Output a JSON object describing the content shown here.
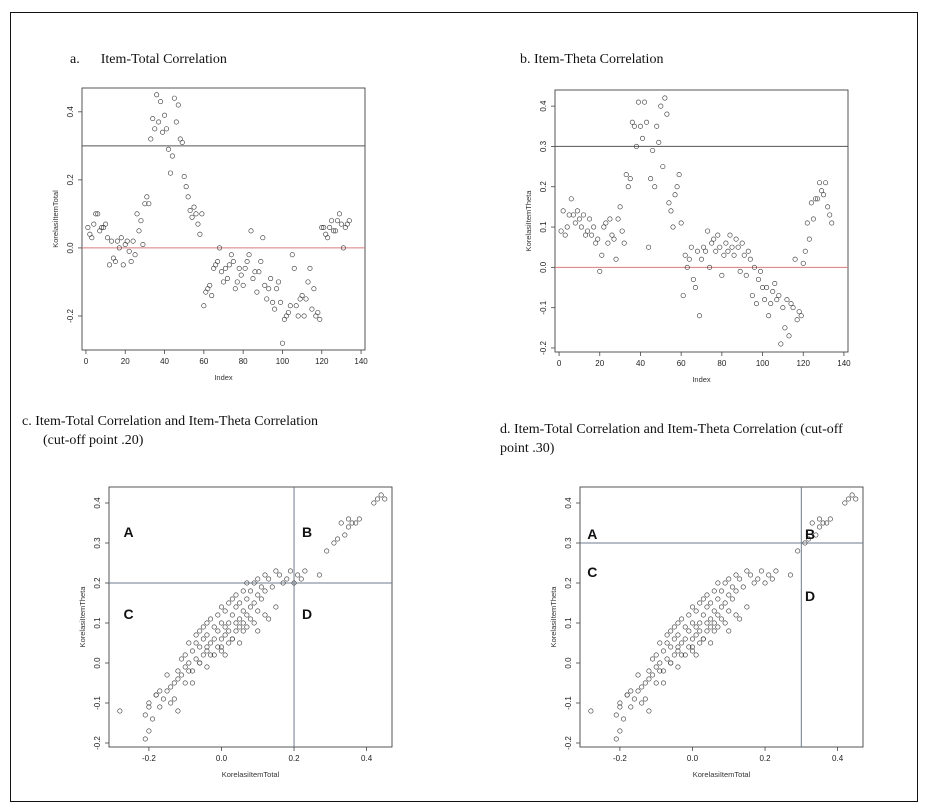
{
  "figure": {
    "captions": {
      "a": "a.      Item-Total Correlation",
      "b": "b. Item-Theta Correlation",
      "c": "c. Item-Total Correlation and Item-Theta Correlation\n      (cut-off point .20)",
      "d": "d. Item-Total Correlation and Item-Theta Correlation (cut-off\npoint .30)"
    }
  },
  "chart_data": [
    {
      "id": "a",
      "type": "scatter",
      "title": "a.      Item-Total Correlation",
      "xlabel": "Index",
      "ylabel": "KorelasiItemTotal",
      "xlim": [
        -2,
        142
      ],
      "ylim": [
        -0.3,
        0.47
      ],
      "xticks": [
        0,
        20,
        40,
        60,
        80,
        100,
        120,
        140
      ],
      "yticks": [
        -0.2,
        0.0,
        0.2,
        0.4
      ],
      "hlines": [
        {
          "y": 0.3,
          "color": "#555555"
        },
        {
          "y": 0.0,
          "color": "#d97b7b"
        }
      ],
      "x": [
        1,
        2,
        3,
        4,
        5,
        6,
        7,
        8,
        9,
        10,
        11,
        12,
        13,
        14,
        15,
        16,
        17,
        18,
        19,
        20,
        21,
        22,
        23,
        24,
        25,
        26,
        27,
        28,
        29,
        30,
        31,
        32,
        33,
        34,
        35,
        36,
        37,
        38,
        39,
        40,
        41,
        42,
        43,
        44,
        45,
        46,
        47,
        48,
        49,
        50,
        51,
        52,
        53,
        54,
        55,
        56,
        57,
        58,
        59,
        60,
        61,
        62,
        63,
        64,
        65,
        66,
        67,
        68,
        69,
        70,
        71,
        72,
        73,
        74,
        75,
        76,
        77,
        78,
        79,
        80,
        81,
        82,
        83,
        84,
        85,
        86,
        87,
        88,
        89,
        90,
        91,
        92,
        93,
        94,
        95,
        96,
        97,
        98,
        99,
        100,
        101,
        102,
        103,
        104,
        105,
        106,
        107,
        108,
        109,
        110,
        111,
        112,
        113,
        114,
        115,
        116,
        117,
        118,
        119,
        120,
        121,
        122,
        123,
        124,
        125,
        126,
        127,
        128,
        129,
        130,
        131,
        132,
        133,
        134
      ],
      "y": [
        0.06,
        0.04,
        0.03,
        0.07,
        0.1,
        0.1,
        0.05,
        0.06,
        0.06,
        0.07,
        0.03,
        -0.05,
        0.02,
        -0.03,
        -0.04,
        0.02,
        0.0,
        0.03,
        -0.05,
        0.01,
        0.02,
        -0.01,
        -0.04,
        0.02,
        -0.02,
        0.1,
        0.05,
        0.08,
        0.01,
        0.13,
        0.15,
        0.13,
        0.32,
        0.38,
        0.35,
        0.45,
        0.37,
        0.43,
        0.34,
        0.39,
        0.35,
        0.29,
        0.22,
        0.27,
        0.44,
        0.37,
        0.42,
        0.32,
        0.31,
        0.21,
        0.18,
        0.15,
        0.11,
        0.09,
        0.12,
        0.1,
        0.07,
        0.04,
        0.1,
        -0.17,
        -0.13,
        -0.12,
        -0.11,
        -0.14,
        -0.06,
        -0.05,
        -0.04,
        0.0,
        -0.07,
        -0.1,
        -0.06,
        -0.09,
        -0.05,
        -0.02,
        -0.04,
        -0.12,
        -0.1,
        -0.06,
        -0.08,
        -0.11,
        -0.06,
        -0.04,
        -0.02,
        0.05,
        -0.09,
        -0.07,
        -0.13,
        -0.07,
        -0.04,
        0.03,
        -0.11,
        -0.15,
        -0.12,
        -0.09,
        -0.16,
        -0.18,
        -0.12,
        -0.1,
        -0.16,
        -0.28,
        -0.21,
        -0.2,
        -0.19,
        -0.17,
        -0.02,
        -0.06,
        -0.17,
        -0.2,
        -0.15,
        -0.14,
        -0.2,
        -0.15,
        -0.1,
        -0.06,
        -0.18,
        -0.12,
        -0.2,
        -0.19,
        -0.21,
        0.06,
        0.06,
        0.04,
        0.03,
        0.06,
        0.08,
        0.05,
        0.05,
        0.08,
        0.1,
        0.07,
        0.0,
        0.06,
        0.07,
        0.08
      ]
    },
    {
      "id": "b",
      "type": "scatter",
      "title": "b. Item-Theta Correlation",
      "xlabel": "Index",
      "ylabel": "KorelasiItemTheta",
      "xlim": [
        -2,
        142
      ],
      "ylim": [
        -0.21,
        0.44
      ],
      "xticks": [
        0,
        20,
        40,
        60,
        80,
        100,
        120,
        140
      ],
      "yticks": [
        -0.2,
        -0.1,
        0.0,
        0.1,
        0.2,
        0.3,
        0.4
      ],
      "hlines": [
        {
          "y": 0.3,
          "color": "#555555"
        },
        {
          "y": 0.0,
          "color": "#d97b7b"
        }
      ],
      "x": [
        1,
        2,
        3,
        4,
        5,
        6,
        7,
        8,
        9,
        10,
        11,
        12,
        13,
        14,
        15,
        16,
        17,
        18,
        19,
        20,
        21,
        22,
        23,
        24,
        25,
        26,
        27,
        28,
        29,
        30,
        31,
        32,
        33,
        34,
        35,
        36,
        37,
        38,
        39,
        40,
        41,
        42,
        43,
        44,
        45,
        46,
        47,
        48,
        49,
        50,
        51,
        52,
        53,
        54,
        55,
        56,
        57,
        58,
        59,
        60,
        61,
        62,
        63,
        64,
        65,
        66,
        67,
        68,
        69,
        70,
        71,
        72,
        73,
        74,
        75,
        76,
        77,
        78,
        79,
        80,
        81,
        82,
        83,
        84,
        85,
        86,
        87,
        88,
        89,
        90,
        91,
        92,
        93,
        94,
        95,
        96,
        97,
        98,
        99,
        100,
        101,
        102,
        103,
        104,
        105,
        106,
        107,
        108,
        109,
        110,
        111,
        112,
        113,
        114,
        115,
        116,
        117,
        118,
        119,
        120,
        121,
        122,
        123,
        124,
        125,
        126,
        127,
        128,
        129,
        130,
        131,
        132,
        133,
        134
      ],
      "y": [
        0.09,
        0.14,
        0.08,
        0.1,
        0.13,
        0.17,
        0.13,
        0.11,
        0.14,
        0.12,
        0.1,
        0.13,
        0.08,
        0.09,
        0.12,
        0.08,
        0.1,
        0.06,
        0.07,
        -0.01,
        0.03,
        0.1,
        0.11,
        0.06,
        0.12,
        0.08,
        0.07,
        0.02,
        0.12,
        0.15,
        0.09,
        0.06,
        0.23,
        0.2,
        0.22,
        0.36,
        0.35,
        0.3,
        0.41,
        0.35,
        0.32,
        0.41,
        0.36,
        0.05,
        0.22,
        0.29,
        0.2,
        0.35,
        0.31,
        0.4,
        0.25,
        0.42,
        0.38,
        0.16,
        0.14,
        0.1,
        0.18,
        0.2,
        0.23,
        0.11,
        -0.07,
        0.03,
        0.0,
        0.02,
        0.05,
        -0.03,
        -0.05,
        0.04,
        -0.12,
        0.02,
        0.05,
        0.04,
        0.09,
        0.0,
        0.06,
        0.07,
        0.04,
        0.08,
        0.05,
        -0.02,
        0.03,
        0.06,
        0.04,
        0.08,
        0.05,
        0.03,
        0.07,
        0.05,
        -0.01,
        0.06,
        0.03,
        -0.02,
        0.04,
        0.02,
        -0.07,
        0.0,
        -0.09,
        -0.03,
        -0.01,
        -0.05,
        -0.08,
        -0.05,
        -0.12,
        -0.09,
        -0.06,
        -0.04,
        -0.08,
        -0.07,
        -0.19,
        -0.1,
        -0.15,
        -0.08,
        -0.17,
        -0.09,
        -0.1,
        0.02,
        -0.13,
        -0.11,
        -0.12,
        0.01,
        0.04,
        0.11,
        0.07,
        0.16,
        0.12,
        0.17,
        0.17,
        0.21,
        0.19,
        0.18,
        0.21,
        0.15,
        0.13,
        0.11
      ]
    },
    {
      "id": "c",
      "type": "scatter",
      "title": "c. Item-Total Correlation and Item-Theta Correlation\n      (cut-off point .20)",
      "xlabel": "KorelasiItemTotal",
      "ylabel": "KorelasiItemTheta",
      "xlim": [
        -0.31,
        0.47
      ],
      "ylim": [
        -0.21,
        0.44
      ],
      "xticks": [
        -0.2,
        0.0,
        0.2,
        0.4
      ],
      "yticks": [
        -0.2,
        -0.1,
        0.0,
        0.1,
        0.2,
        0.3,
        0.4
      ],
      "cutoff": 0.2,
      "quadrant_labels": [
        {
          "text": "A",
          "x": -0.27,
          "y": 0.315
        },
        {
          "text": "B",
          "x": 0.222,
          "y": 0.315
        },
        {
          "text": "C",
          "x": -0.27,
          "y": 0.11
        },
        {
          "text": "D",
          "x": 0.222,
          "y": 0.11
        }
      ],
      "x": [
        -0.28,
        -0.21,
        -0.2,
        -0.2,
        -0.19,
        -0.18,
        -0.17,
        -0.16,
        -0.15,
        -0.14,
        -0.14,
        -0.13,
        -0.12,
        -0.12,
        -0.11,
        -0.11,
        -0.1,
        -0.1,
        -0.1,
        -0.09,
        -0.09,
        -0.08,
        -0.08,
        -0.07,
        -0.07,
        -0.07,
        -0.06,
        -0.06,
        -0.06,
        -0.05,
        -0.05,
        -0.05,
        -0.04,
        -0.04,
        -0.04,
        -0.04,
        -0.03,
        -0.03,
        -0.02,
        -0.02,
        -0.02,
        -0.01,
        -0.01,
        -0.01,
        0.0,
        0.0,
        0.0,
        0.0,
        0.01,
        0.01,
        0.01,
        0.02,
        0.02,
        0.02,
        0.02,
        0.03,
        0.03,
        0.03,
        0.04,
        0.04,
        0.04,
        0.04,
        0.05,
        0.05,
        0.05,
        0.06,
        0.06,
        0.06,
        0.07,
        0.07,
        0.07,
        0.07,
        0.08,
        0.08,
        0.08,
        0.09,
        0.09,
        0.1,
        0.1,
        0.1,
        0.11,
        0.11,
        0.12,
        0.12,
        0.13,
        0.14,
        0.15,
        0.16,
        0.17,
        0.18,
        0.19,
        0.2,
        0.21,
        0.22,
        0.23,
        0.27,
        0.29,
        0.31,
        0.32,
        0.33,
        0.34,
        0.35,
        0.35,
        0.36,
        0.37,
        0.38,
        0.42,
        0.43,
        0.44,
        0.45,
        -0.21,
        -0.2,
        -0.18,
        -0.15,
        -0.12,
        -0.09,
        -0.06,
        -0.03,
        0.0,
        0.03,
        0.06,
        0.09,
        0.12,
        0.15,
        -0.17,
        -0.13,
        -0.08,
        -0.04,
        0.01,
        0.05,
        0.1,
        0.13
      ],
      "y": [
        -0.12,
        -0.19,
        -0.17,
        -0.1,
        -0.14,
        -0.08,
        -0.07,
        -0.09,
        -0.03,
        -0.06,
        -0.1,
        -0.05,
        -0.02,
        -0.12,
        -0.03,
        0.01,
        -0.05,
        0.02,
        -0.01,
        0.0,
        0.05,
        0.03,
        -0.02,
        0.05,
        0.01,
        0.07,
        0.0,
        0.04,
        0.08,
        0.02,
        0.06,
        0.09,
        0.04,
        0.07,
        0.1,
        0.03,
        0.05,
        0.11,
        0.06,
        0.09,
        0.02,
        0.08,
        0.12,
        0.04,
        0.06,
        0.1,
        0.14,
        0.03,
        0.09,
        0.07,
        0.13,
        0.05,
        0.1,
        0.15,
        0.08,
        0.12,
        0.06,
        0.16,
        0.1,
        0.14,
        0.08,
        0.17,
        0.11,
        0.15,
        0.09,
        0.13,
        0.18,
        0.1,
        0.16,
        0.12,
        0.2,
        0.09,
        0.14,
        0.18,
        0.11,
        0.15,
        0.2,
        0.13,
        0.17,
        0.21,
        0.16,
        0.19,
        0.18,
        0.22,
        0.21,
        0.19,
        0.23,
        0.22,
        0.2,
        0.21,
        0.23,
        0.2,
        0.22,
        0.21,
        0.23,
        0.22,
        0.28,
        0.3,
        0.31,
        0.35,
        0.32,
        0.36,
        0.34,
        0.35,
        0.35,
        0.36,
        0.4,
        0.41,
        0.42,
        0.41,
        -0.13,
        -0.11,
        -0.08,
        -0.07,
        -0.04,
        -0.02,
        0.0,
        0.02,
        0.04,
        0.06,
        0.08,
        0.1,
        0.12,
        0.14,
        -0.11,
        -0.09,
        -0.05,
        -0.01,
        0.02,
        0.05,
        0.08,
        0.11
      ]
    },
    {
      "id": "d",
      "type": "scatter",
      "title": "d. Item-Total Correlation and Item-Theta Correlation (cut-off\npoint .30)",
      "xlabel": "KorelasiItemTotal",
      "ylabel": "KorelasiItemTheta",
      "xlim": [
        -0.31,
        0.47
      ],
      "ylim": [
        -0.21,
        0.44
      ],
      "xticks": [
        -0.2,
        0.0,
        0.2,
        0.4
      ],
      "yticks": [
        -0.2,
        -0.1,
        0.0,
        0.1,
        0.2,
        0.3,
        0.4
      ],
      "cutoff": 0.3,
      "quadrant_labels": [
        {
          "text": "A",
          "x": -0.29,
          "y": 0.31
        },
        {
          "text": "B",
          "x": 0.31,
          "y": 0.31
        },
        {
          "text": "C",
          "x": -0.29,
          "y": 0.215
        },
        {
          "text": "D",
          "x": 0.31,
          "y": 0.155
        }
      ],
      "x": [
        -0.28,
        -0.21,
        -0.2,
        -0.2,
        -0.19,
        -0.18,
        -0.17,
        -0.16,
        -0.15,
        -0.14,
        -0.14,
        -0.13,
        -0.12,
        -0.12,
        -0.11,
        -0.11,
        -0.1,
        -0.1,
        -0.1,
        -0.09,
        -0.09,
        -0.08,
        -0.08,
        -0.07,
        -0.07,
        -0.07,
        -0.06,
        -0.06,
        -0.06,
        -0.05,
        -0.05,
        -0.05,
        -0.04,
        -0.04,
        -0.04,
        -0.04,
        -0.03,
        -0.03,
        -0.02,
        -0.02,
        -0.02,
        -0.01,
        -0.01,
        -0.01,
        0.0,
        0.0,
        0.0,
        0.0,
        0.01,
        0.01,
        0.01,
        0.02,
        0.02,
        0.02,
        0.02,
        0.03,
        0.03,
        0.03,
        0.04,
        0.04,
        0.04,
        0.04,
        0.05,
        0.05,
        0.05,
        0.06,
        0.06,
        0.06,
        0.07,
        0.07,
        0.07,
        0.07,
        0.08,
        0.08,
        0.08,
        0.09,
        0.09,
        0.1,
        0.1,
        0.1,
        0.11,
        0.11,
        0.12,
        0.12,
        0.13,
        0.14,
        0.15,
        0.16,
        0.17,
        0.18,
        0.19,
        0.2,
        0.21,
        0.22,
        0.23,
        0.27,
        0.29,
        0.31,
        0.32,
        0.33,
        0.34,
        0.35,
        0.35,
        0.36,
        0.37,
        0.38,
        0.42,
        0.43,
        0.44,
        0.45,
        -0.21,
        -0.2,
        -0.18,
        -0.15,
        -0.12,
        -0.09,
        -0.06,
        -0.03,
        0.0,
        0.03,
        0.06,
        0.09,
        0.12,
        0.15,
        -0.17,
        -0.13,
        -0.08,
        -0.04,
        0.01,
        0.05,
        0.1,
        0.13
      ],
      "y": [
        -0.12,
        -0.19,
        -0.17,
        -0.1,
        -0.14,
        -0.08,
        -0.07,
        -0.09,
        -0.03,
        -0.06,
        -0.1,
        -0.05,
        -0.02,
        -0.12,
        -0.03,
        0.01,
        -0.05,
        0.02,
        -0.01,
        0.0,
        0.05,
        0.03,
        -0.02,
        0.05,
        0.01,
        0.07,
        0.0,
        0.04,
        0.08,
        0.02,
        0.06,
        0.09,
        0.04,
        0.07,
        0.1,
        0.03,
        0.05,
        0.11,
        0.06,
        0.09,
        0.02,
        0.08,
        0.12,
        0.04,
        0.06,
        0.1,
        0.14,
        0.03,
        0.09,
        0.07,
        0.13,
        0.05,
        0.1,
        0.15,
        0.08,
        0.12,
        0.06,
        0.16,
        0.1,
        0.14,
        0.08,
        0.17,
        0.11,
        0.15,
        0.09,
        0.13,
        0.18,
        0.1,
        0.16,
        0.12,
        0.2,
        0.09,
        0.14,
        0.18,
        0.11,
        0.15,
        0.2,
        0.13,
        0.17,
        0.21,
        0.16,
        0.19,
        0.18,
        0.22,
        0.21,
        0.19,
        0.23,
        0.22,
        0.2,
        0.21,
        0.23,
        0.2,
        0.22,
        0.21,
        0.23,
        0.22,
        0.28,
        0.3,
        0.31,
        0.35,
        0.32,
        0.36,
        0.34,
        0.35,
        0.35,
        0.36,
        0.4,
        0.41,
        0.42,
        0.41,
        -0.13,
        -0.11,
        -0.08,
        -0.07,
        -0.04,
        -0.02,
        0.0,
        0.02,
        0.04,
        0.06,
        0.08,
        0.1,
        0.12,
        0.14,
        -0.11,
        -0.09,
        -0.05,
        -0.01,
        0.02,
        0.05,
        0.08,
        0.11
      ]
    }
  ]
}
